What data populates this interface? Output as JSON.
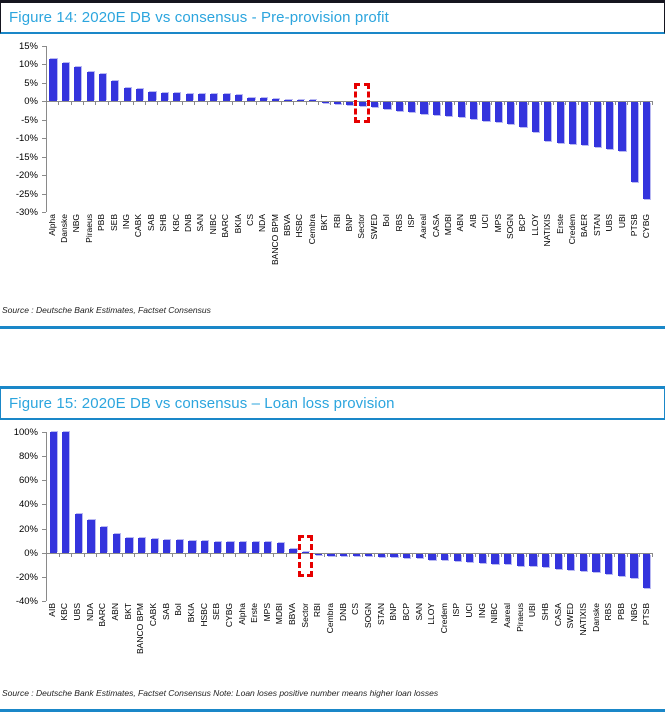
{
  "colors": {
    "title_text": "#2ca5de",
    "rule_cyan": "#1a87c8",
    "rule_dark": "#15151f",
    "bar": "#3434dd",
    "bar_edge": "#b9b9f2",
    "axis": "#8a8a8a",
    "highlight_red": "#e60000",
    "text": "#1a1a1a"
  },
  "chart_data": [
    {
      "type": "bar",
      "title": "Figure 14: 2020E DB vs consensus - Pre-provision profit",
      "source": "Source : Deutsche Bank Estimates, Factset Consensus",
      "xlabel": "",
      "ylabel": "",
      "ylim": [
        -30,
        15
      ],
      "ytick_step": 5,
      "ylabel_format": "percent",
      "grid": false,
      "legend": false,
      "highlight_category": "Sector",
      "categories": [
        "Alpha",
        "Danske",
        "NBG",
        "Piraeus",
        "PBB",
        "SEB",
        "ING",
        "CABK",
        "SAB",
        "SHB",
        "KBC",
        "DNB",
        "SAN",
        "NIBC",
        "BARC",
        "BKIA",
        "CS",
        "NDA",
        "BANCO BPM",
        "BBVA",
        "HSBC",
        "Cembra",
        "BKT",
        "RBI",
        "BNP",
        "Sector",
        "SWED",
        "BoI",
        "RBS",
        "ISP",
        "Aareal",
        "CASA",
        "MDBI",
        "ABN",
        "AIB",
        "UCI",
        "MPS",
        "SOGN",
        "BCP",
        "LLOY",
        "NATIXIS",
        "Erste",
        "Credem",
        "BAER",
        "STAN",
        "UBS",
        "UBI",
        "PTSB",
        "CYBG"
      ],
      "values": [
        11.5,
        10.3,
        9.4,
        8.0,
        7.4,
        5.4,
        3.5,
        3.3,
        2.4,
        2.3,
        2.2,
        2.1,
        2.0,
        2.0,
        1.9,
        1.8,
        0.9,
        0.8,
        0.7,
        0.4,
        0.2,
        0.1,
        -0.3,
        -0.4,
        -0.6,
        -1.0,
        -1.4,
        -1.8,
        -2.3,
        -2.7,
        -3.1,
        -3.5,
        -3.7,
        -4.1,
        -4.5,
        -5.0,
        -5.2,
        -5.9,
        -6.8,
        -8.1,
        -10.4,
        -11.0,
        -11.3,
        -11.7,
        -12.2,
        -12.6,
        -13.1,
        -21.5,
        -26.3
      ]
    },
    {
      "type": "bar",
      "title": "Figure 15: 2020E DB vs consensus – Loan loss provision",
      "source": "Source : Deutsche Bank Estimates, Factset Consensus Note: Loan loses positive number means higher loan losses",
      "xlabel": "",
      "ylabel": "",
      "ylim": [
        -40,
        100
      ],
      "ytick_step": 20,
      "ylabel_format": "percent",
      "grid": false,
      "legend": false,
      "highlight_category": "Sector",
      "categories": [
        "AIB",
        "KBC",
        "UBS",
        "NDA",
        "BARC",
        "ABN",
        "BKT",
        "BANCO BPM",
        "CABK",
        "SAB",
        "BoI",
        "BKIA",
        "HSBC",
        "SEB",
        "CYBG",
        "Alpha",
        "Erste",
        "MPS",
        "MDBI",
        "BBVA",
        "Sector",
        "RBI",
        "Cembra",
        "DNB",
        "CS",
        "SOGN",
        "STAN",
        "BNP",
        "BCP",
        "SAN",
        "LLOY",
        "Credem",
        "ISP",
        "UCI",
        "ING",
        "NIBC",
        "Aareal",
        "Piraeus",
        "UBI",
        "SHB",
        "CASA",
        "SWED",
        "NATIXIS",
        "Danske",
        "RBS",
        "PBB",
        "NBG",
        "PTSB"
      ],
      "values": [
        100,
        100,
        32,
        27,
        21,
        15.2,
        12.4,
        11.8,
        11.0,
        10.3,
        10.2,
        9.9,
        9.6,
        9.2,
        8.9,
        8.8,
        8.6,
        8.5,
        7.8,
        3.4,
        0.5,
        -0.6,
        -1.5,
        -1.8,
        -2.0,
        -2.3,
        -2.6,
        -3.0,
        -3.3,
        -3.6,
        -5.0,
        -5.6,
        -6.4,
        -7.2,
        -7.9,
        -8.2,
        -8.8,
        -9.8,
        -10.3,
        -11.2,
        -12.6,
        -13.3,
        -14.2,
        -15.5,
        -16.5,
        -18.3,
        -20.5,
        -28.0
      ]
    }
  ]
}
